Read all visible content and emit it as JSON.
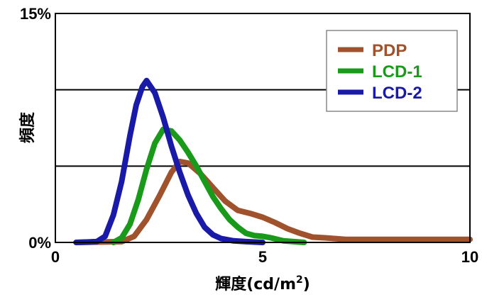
{
  "chart_data": {
    "type": "line",
    "xlabel": "輝度(cd/m",
    "xlabel_sup": "2",
    "xlabel_suffix": ")",
    "ylabel": "頻度",
    "xlim": [
      0,
      10
    ],
    "ylim": [
      0,
      15
    ],
    "x_ticks": [
      {
        "value": 0,
        "label": "0"
      },
      {
        "value": 5,
        "label": "5"
      },
      {
        "value": 10,
        "label": "10"
      }
    ],
    "y_ticks": [
      {
        "value": 0,
        "label": "0%"
      },
      {
        "value": 15,
        "label": "15%"
      }
    ],
    "gridlines_y": [
      5,
      10
    ],
    "legend_position": "top-right",
    "series": [
      {
        "name": "PDP",
        "color": "#a0522d",
        "points": [
          [
            0.5,
            0
          ],
          [
            1.6,
            0.05
          ],
          [
            1.9,
            0.4
          ],
          [
            2.2,
            1.5
          ],
          [
            2.5,
            3.0
          ],
          [
            2.8,
            4.6
          ],
          [
            3.0,
            5.3
          ],
          [
            3.2,
            5.2
          ],
          [
            3.5,
            4.5
          ],
          [
            3.8,
            3.6
          ],
          [
            4.1,
            2.7
          ],
          [
            4.4,
            2.1
          ],
          [
            4.7,
            1.9
          ],
          [
            5.0,
            1.65
          ],
          [
            5.3,
            1.3
          ],
          [
            5.6,
            0.9
          ],
          [
            5.9,
            0.6
          ],
          [
            6.2,
            0.35
          ],
          [
            6.5,
            0.3
          ],
          [
            7.0,
            0.2
          ],
          [
            8.0,
            0.2
          ],
          [
            9.0,
            0.2
          ],
          [
            10.0,
            0.2
          ]
        ]
      },
      {
        "name": "LCD-1",
        "color": "#1a9a1a",
        "points": [
          [
            1.4,
            0
          ],
          [
            1.6,
            0.3
          ],
          [
            1.8,
            1.2
          ],
          [
            2.0,
            2.8
          ],
          [
            2.2,
            4.8
          ],
          [
            2.4,
            6.5
          ],
          [
            2.6,
            7.4
          ],
          [
            2.8,
            7.3
          ],
          [
            3.0,
            6.7
          ],
          [
            3.2,
            5.9
          ],
          [
            3.4,
            5.0
          ],
          [
            3.6,
            4.0
          ],
          [
            3.8,
            3.0
          ],
          [
            4.0,
            2.2
          ],
          [
            4.2,
            1.5
          ],
          [
            4.4,
            1.0
          ],
          [
            4.6,
            0.6
          ],
          [
            4.8,
            0.45
          ],
          [
            5.0,
            0.4
          ],
          [
            5.2,
            0.3
          ],
          [
            5.5,
            0.1
          ],
          [
            6.0,
            0
          ]
        ]
      },
      {
        "name": "LCD-2",
        "color": "#1a1aa8",
        "points": [
          [
            0.5,
            0
          ],
          [
            1.0,
            0.05
          ],
          [
            1.2,
            0.4
          ],
          [
            1.4,
            1.8
          ],
          [
            1.6,
            4.0
          ],
          [
            1.8,
            7.0
          ],
          [
            1.95,
            9.0
          ],
          [
            2.1,
            10.2
          ],
          [
            2.2,
            10.6
          ],
          [
            2.4,
            9.8
          ],
          [
            2.6,
            8.2
          ],
          [
            2.8,
            6.3
          ],
          [
            3.0,
            4.6
          ],
          [
            3.2,
            3.1
          ],
          [
            3.4,
            1.9
          ],
          [
            3.6,
            1.0
          ],
          [
            3.8,
            0.5
          ],
          [
            4.0,
            0.25
          ],
          [
            4.3,
            0.1
          ],
          [
            4.6,
            0.05
          ],
          [
            5.0,
            0
          ]
        ]
      }
    ]
  }
}
